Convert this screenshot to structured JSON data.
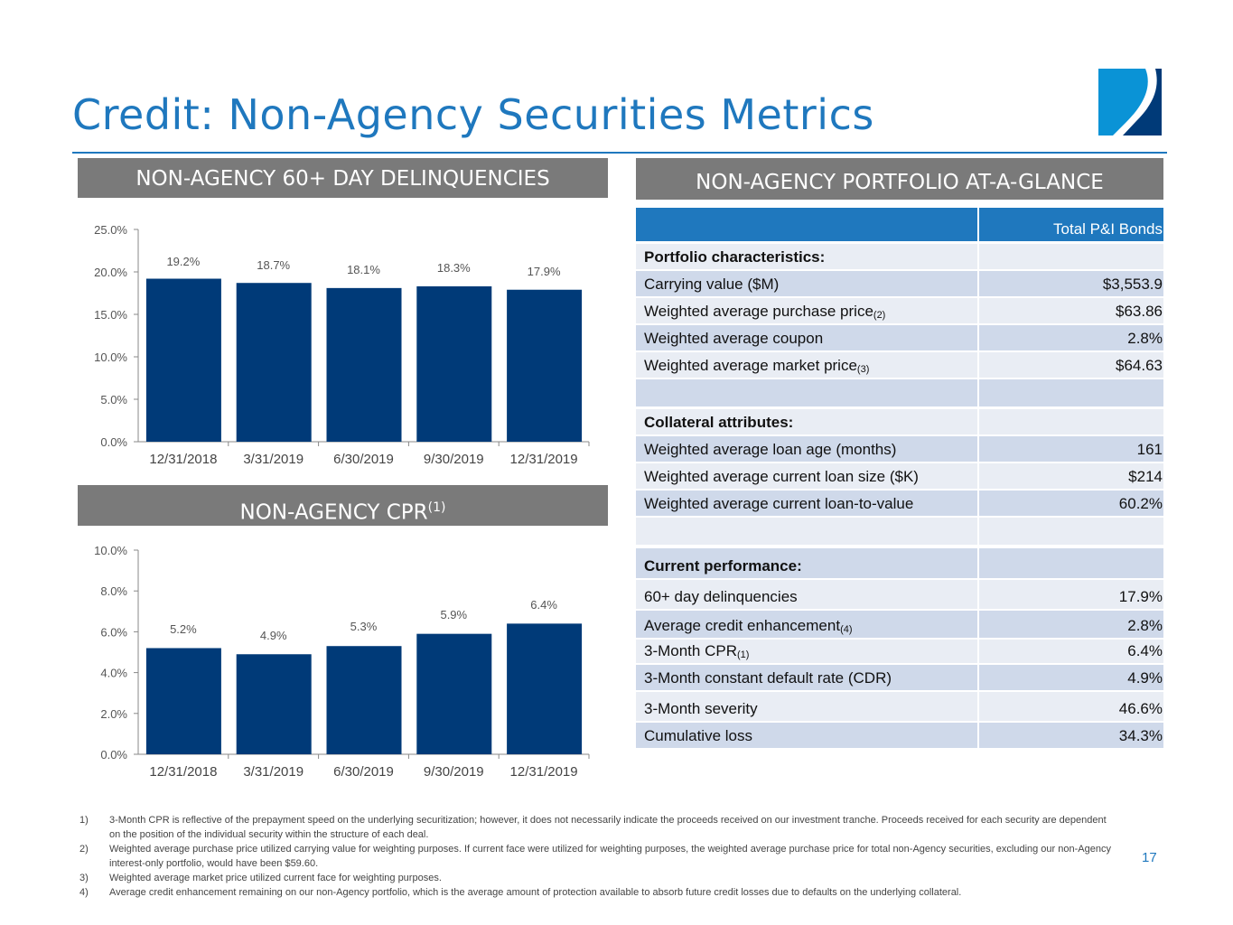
{
  "title": "Credit: Non-Agency Securities Metrics",
  "page_number": "17",
  "colors": {
    "accent": "#1f78be",
    "bar": "#003a78",
    "section_bg": "#7a7a7a",
    "row_light": "#e9edf4",
    "row_dark": "#cfd9ea"
  },
  "sections": {
    "delinquencies": "NON-AGENCY 60+ DAY DELINQUENCIES",
    "cpr": "NON-AGENCY CPR",
    "cpr_sup": "(1)",
    "portfolio": "NON-AGENCY PORTFOLIO AT-A-GLANCE"
  },
  "chart_data": [
    {
      "type": "bar",
      "title": "NON-AGENCY 60+ DAY DELINQUENCIES",
      "categories": [
        "12/31/2018",
        "3/31/2019",
        "6/30/2019",
        "9/30/2019",
        "12/31/2019"
      ],
      "values": [
        19.2,
        18.7,
        18.1,
        18.3,
        17.9
      ],
      "data_labels": [
        "19.2%",
        "18.7%",
        "18.1%",
        "18.3%",
        "17.9%"
      ],
      "ylim": [
        0,
        25
      ],
      "yticks": [
        "0.0%",
        "5.0%",
        "10.0%",
        "15.0%",
        "20.0%",
        "25.0%"
      ],
      "grid": false
    },
    {
      "type": "bar",
      "title": "NON-AGENCY CPR(1)",
      "categories": [
        "12/31/2018",
        "3/31/2019",
        "6/30/2019",
        "9/30/2019",
        "12/31/2019"
      ],
      "values": [
        5.2,
        4.9,
        5.3,
        5.9,
        6.4
      ],
      "data_labels": [
        "5.2%",
        "4.9%",
        "5.3%",
        "5.9%",
        "6.4%"
      ],
      "ylim": [
        0,
        10
      ],
      "yticks": [
        "0.0%",
        "2.0%",
        "4.0%",
        "6.0%",
        "8.0%",
        "10.0%"
      ],
      "grid": false
    }
  ],
  "table": {
    "header": [
      "",
      "Total P&I Bonds"
    ],
    "rows": [
      {
        "label": "Portfolio characteristics:",
        "value": "",
        "bold": true
      },
      {
        "label": "Carrying value ($M)",
        "value": "$3,553.9"
      },
      {
        "label": "Weighted average purchase price",
        "sup": "(2)",
        "value": "$63.86"
      },
      {
        "label": "Weighted average coupon",
        "value": "2.8%"
      },
      {
        "label": "Weighted average market price",
        "sup": "(3)",
        "value": "$64.63"
      },
      {
        "label": "",
        "value": ""
      },
      {
        "label": "Collateral attributes:",
        "value": "",
        "bold": true
      },
      {
        "label": "Weighted average loan age (months)",
        "value": "161"
      },
      {
        "label": "Weighted average current loan size ($K)",
        "value": "$214"
      },
      {
        "label": "Weighted average current loan-to-value",
        "value": "60.2%"
      },
      {
        "label": "",
        "value": ""
      },
      {
        "label": "Current performance:",
        "value": "",
        "bold": true
      },
      {
        "label": "60+ day delinquencies",
        "value": "17.9%"
      },
      {
        "label": "Average credit enhancement",
        "sup": "(4)",
        "value": "2.8%"
      },
      {
        "label": "3-Month CPR",
        "sup": "(1)",
        "value": "6.4%"
      },
      {
        "label": "3-Month constant default rate (CDR)",
        "value": "4.9%"
      },
      {
        "label": "3-Month severity",
        "value": "46.6%"
      },
      {
        "label": "Cumulative loss",
        "value": "34.3%"
      }
    ]
  },
  "footnotes": [
    {
      "n": "1)",
      "text": "3-Month CPR is reflective of the prepayment speed on the underlying securitization; however, it does not necessarily indicate the proceeds received on our investment tranche. Proceeds received for each security are dependent on the position of the individual security within the structure of each deal."
    },
    {
      "n": "2)",
      "text": "Weighted average purchase price utilized carrying value for weighting purposes. If current face were utilized for weighting purposes, the weighted average purchase price for total non-Agency securities, excluding our non-Agency interest-only portfolio, would have been $59.60."
    },
    {
      "n": "3)",
      "text": "Weighted average market price utilized current face for weighting purposes."
    },
    {
      "n": "4)",
      "text": "Average credit enhancement remaining on our non-Agency portfolio, which is the average amount of protection available to absorb future credit losses due to defaults on the underlying collateral."
    }
  ]
}
